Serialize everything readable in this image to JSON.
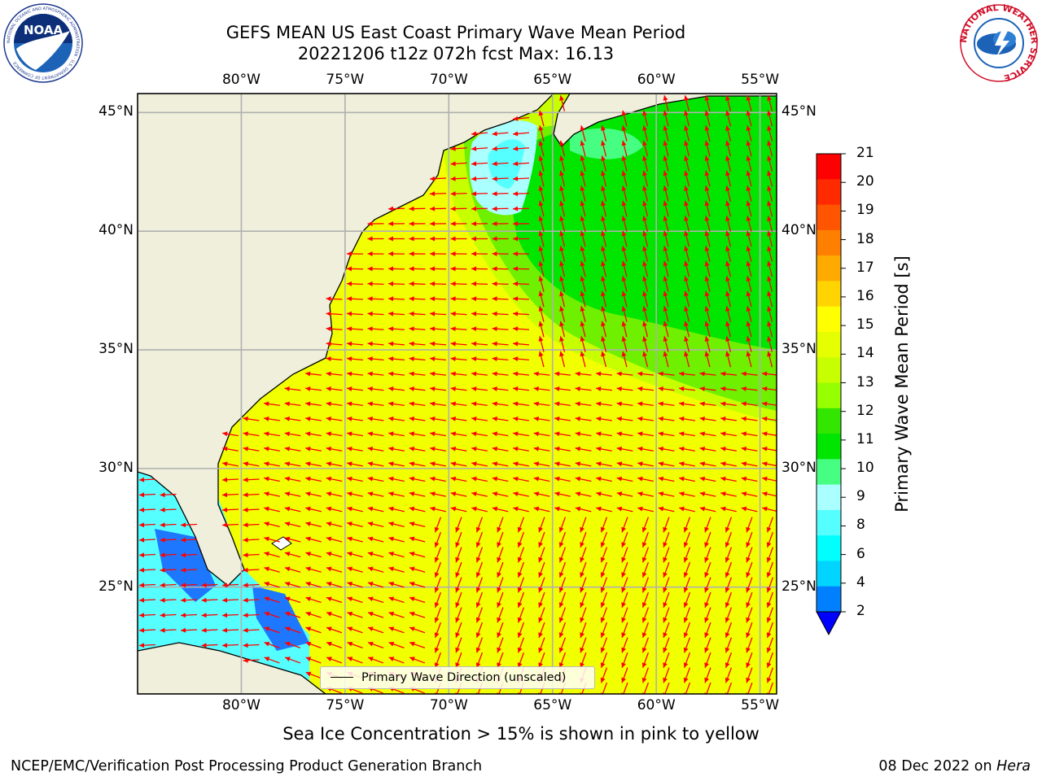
{
  "header": {
    "title_line1": "GEFS MEAN US East Coast Primary Wave Mean Period",
    "title_line2": "20221206 t12z 072h fcst   Max: 16.13"
  },
  "logos": {
    "left": {
      "text": "NOAA",
      "ring": "NATIONAL OCEANIC AND ATMOSPHERIC ADMINISTRATION · U.S. DEPARTMENT OF COMMERCE"
    },
    "right": {
      "ring": "NATIONAL WEATHER SERVICE"
    }
  },
  "map": {
    "lon_labels": [
      "80°W",
      "75°W",
      "70°W",
      "65°W",
      "60°W",
      "55°W"
    ],
    "lat_labels": [
      "45°N",
      "40°N",
      "35°N",
      "30°N",
      "25°N"
    ],
    "lon_values": [
      -80,
      -75,
      -70,
      -65,
      -60,
      -55
    ],
    "lat_values": [
      45,
      40,
      35,
      30,
      25
    ],
    "extent": {
      "lon_min": -85,
      "lon_max": -54.2,
      "lat_min": 20.5,
      "lat_max": 45.8
    },
    "gridlines": true,
    "land_color": "#efefdc",
    "vector_color": "#ff0000",
    "legend": {
      "label": "Primary Wave Direction (unscaled)",
      "placement": "bottom-center"
    }
  },
  "colorbar": {
    "label": "Primary Wave Mean Period [s]",
    "ticks": [
      "21",
      "20",
      "19",
      "18",
      "17",
      "16",
      "15",
      "14",
      "13",
      "12",
      "11",
      "10",
      "9",
      "8",
      "6",
      "4",
      "2"
    ],
    "colors": [
      "#ff0000",
      "#ff2a00",
      "#ff5500",
      "#ff8000",
      "#ffaa00",
      "#ffd400",
      "#ffff00",
      "#e6ff00",
      "#c8ff00",
      "#96ff00",
      "#32e600",
      "#00e600",
      "#46ff82",
      "#aaffff",
      "#55ffff",
      "#00ffff",
      "#00d4ff",
      "#0080ff"
    ],
    "under_color": "#0000ff"
  },
  "caption": "Sea Ice Concentration > 15% is shown in pink to yellow",
  "footer": {
    "left": "NCEP/EMC/Verification Post Processing Product Generation Branch",
    "right_prefix": "08 Dec 2022 on ",
    "right_host": "Hera"
  }
}
